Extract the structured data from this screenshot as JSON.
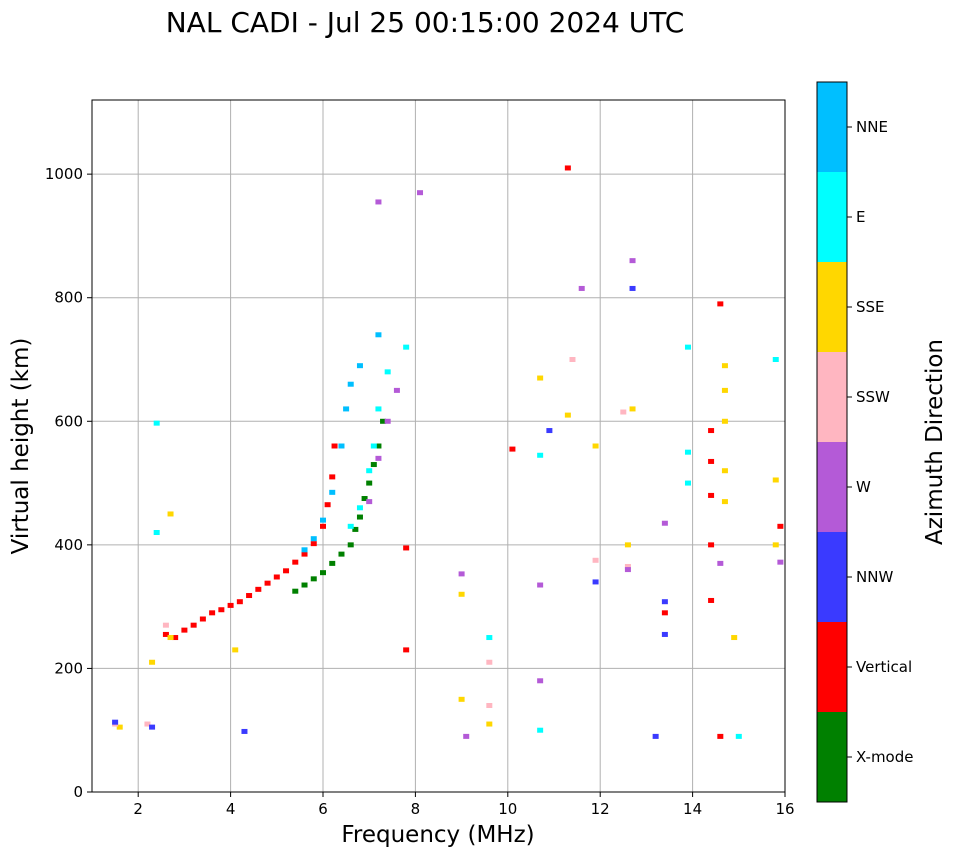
{
  "chart_data": {
    "type": "scatter",
    "title": "NAL CADI - Jul 25 00:15:00 2024 UTC",
    "xlabel": "Frequency (MHz)",
    "ylabel": "Virtual height (km)",
    "xlim": [
      1,
      16
    ],
    "ylim": [
      0,
      1120
    ],
    "x_ticks": [
      2,
      4,
      6,
      8,
      10,
      12,
      14,
      16
    ],
    "y_ticks": [
      0,
      200,
      400,
      600,
      800,
      1000
    ],
    "grid": true,
    "colorbar": {
      "label": "Azimuth Direction",
      "categories": [
        {
          "name": "X-mode",
          "color": "#008000"
        },
        {
          "name": "Vertical",
          "color": "#ff0000"
        },
        {
          "name": "NNW",
          "color": "#3a3aff"
        },
        {
          "name": "W",
          "color": "#b45ad7"
        },
        {
          "name": "SSW",
          "color": "#ffb6c1"
        },
        {
          "name": "SSE",
          "color": "#ffd700"
        },
        {
          "name": "E",
          "color": "#00ffff"
        },
        {
          "name": "NNE",
          "color": "#00bfff"
        }
      ]
    },
    "traces": [
      {
        "name": "Vertical",
        "points": [
          [
            2.6,
            255
          ],
          [
            2.8,
            250
          ],
          [
            3.0,
            262
          ],
          [
            3.2,
            270
          ],
          [
            3.4,
            280
          ],
          [
            3.6,
            290
          ],
          [
            3.8,
            295
          ],
          [
            4.0,
            302
          ],
          [
            4.2,
            308
          ],
          [
            4.4,
            318
          ],
          [
            4.6,
            328
          ],
          [
            4.8,
            338
          ],
          [
            5.0,
            348
          ],
          [
            5.2,
            358
          ],
          [
            5.4,
            372
          ],
          [
            5.6,
            385
          ],
          [
            5.8,
            402
          ],
          [
            6.0,
            430
          ],
          [
            6.1,
            465
          ],
          [
            6.2,
            510
          ],
          [
            6.25,
            560
          ]
        ]
      },
      {
        "name": "X-mode",
        "points": [
          [
            5.4,
            325
          ],
          [
            5.6,
            335
          ],
          [
            5.8,
            345
          ],
          [
            6.0,
            355
          ],
          [
            6.2,
            370
          ],
          [
            6.4,
            385
          ],
          [
            6.6,
            400
          ],
          [
            6.7,
            425
          ],
          [
            6.8,
            445
          ],
          [
            6.9,
            475
          ],
          [
            7.0,
            500
          ],
          [
            7.1,
            530
          ],
          [
            7.2,
            560
          ],
          [
            7.3,
            600
          ]
        ]
      },
      {
        "name": "NNE",
        "points": [
          [
            5.6,
            392
          ],
          [
            5.8,
            410
          ],
          [
            6.0,
            440
          ],
          [
            6.2,
            485
          ],
          [
            6.4,
            560
          ],
          [
            6.5,
            620
          ],
          [
            6.6,
            660
          ],
          [
            6.8,
            690
          ],
          [
            7.2,
            740
          ]
        ]
      },
      {
        "name": "E",
        "points": [
          [
            6.6,
            430
          ],
          [
            6.8,
            460
          ],
          [
            7.0,
            520
          ],
          [
            7.1,
            560
          ],
          [
            7.2,
            620
          ],
          [
            7.4,
            680
          ],
          [
            7.8,
            720
          ]
        ]
      },
      {
        "name": "W",
        "points": [
          [
            7.0,
            470
          ],
          [
            7.2,
            540
          ],
          [
            7.4,
            600
          ],
          [
            7.6,
            650
          ]
        ]
      },
      {
        "name": "SSE",
        "points": [
          [
            1.6,
            105
          ],
          [
            2.3,
            210
          ],
          [
            2.7,
            450
          ],
          [
            2.7,
            250
          ],
          [
            4.1,
            230
          ],
          [
            9.0,
            320
          ],
          [
            9.0,
            150
          ],
          [
            9.6,
            110
          ],
          [
            10.7,
            670
          ],
          [
            11.3,
            610
          ],
          [
            11.9,
            560
          ],
          [
            12.6,
            400
          ],
          [
            12.7,
            620
          ],
          [
            14.7,
            470
          ],
          [
            14.7,
            520
          ],
          [
            14.7,
            600
          ],
          [
            14.7,
            650
          ],
          [
            14.7,
            690
          ],
          [
            14.9,
            250
          ],
          [
            15.8,
            400
          ],
          [
            15.8,
            505
          ]
        ]
      },
      {
        "name": "SSW",
        "points": [
          [
            1.5,
            110
          ],
          [
            2.2,
            110
          ],
          [
            2.6,
            270
          ],
          [
            9.6,
            140
          ],
          [
            9.6,
            210
          ],
          [
            11.4,
            700
          ],
          [
            12.5,
            615
          ],
          [
            12.6,
            365
          ],
          [
            11.9,
            375
          ]
        ]
      },
      {
        "name": "NNW",
        "points": [
          [
            1.5,
            113
          ],
          [
            2.3,
            105
          ],
          [
            4.3,
            98
          ],
          [
            10.9,
            585
          ],
          [
            11.9,
            340
          ],
          [
            12.7,
            815
          ],
          [
            13.4,
            255
          ],
          [
            13.2,
            90
          ],
          [
            13.4,
            308
          ]
        ]
      },
      {
        "name": "W",
        "points": [
          [
            7.2,
            955
          ],
          [
            8.1,
            970
          ],
          [
            9.0,
            353
          ],
          [
            9.1,
            90
          ],
          [
            10.7,
            335
          ],
          [
            10.7,
            180
          ],
          [
            11.6,
            815
          ],
          [
            12.6,
            360
          ],
          [
            12.7,
            860
          ],
          [
            13.4,
            435
          ],
          [
            14.6,
            370
          ],
          [
            15.9,
            372
          ]
        ]
      },
      {
        "name": "Vertical",
        "points": [
          [
            11.3,
            1010
          ],
          [
            13.4,
            290
          ],
          [
            14.4,
            310
          ],
          [
            14.4,
            400
          ],
          [
            14.4,
            480
          ],
          [
            14.4,
            535
          ],
          [
            14.4,
            585
          ],
          [
            14.6,
            90
          ],
          [
            14.6,
            790
          ],
          [
            15.9,
            430
          ],
          [
            10.1,
            555
          ],
          [
            7.8,
            395
          ],
          [
            7.8,
            230
          ]
        ]
      },
      {
        "name": "E",
        "points": [
          [
            2.4,
            420
          ],
          [
            2.4,
            597
          ],
          [
            9.6,
            250
          ],
          [
            10.7,
            100
          ],
          [
            10.7,
            545
          ],
          [
            13.9,
            720
          ],
          [
            13.9,
            550
          ],
          [
            13.9,
            500
          ],
          [
            15.0,
            90
          ],
          [
            15.8,
            700
          ]
        ]
      }
    ]
  }
}
